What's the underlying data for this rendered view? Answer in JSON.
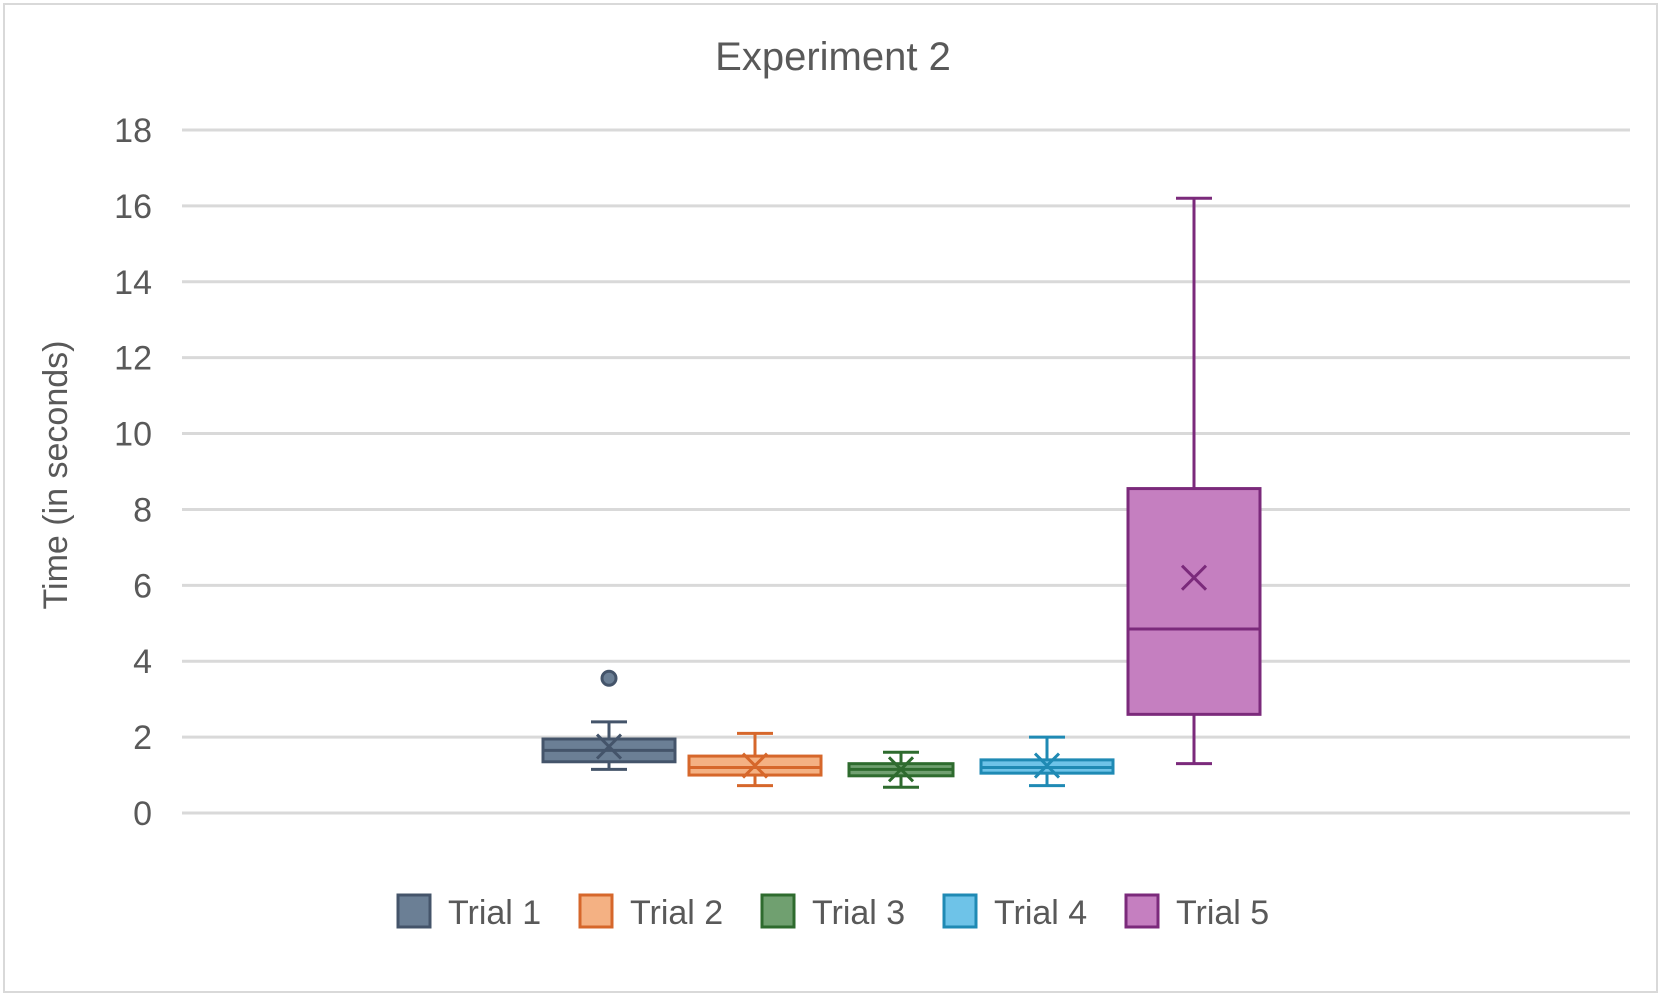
{
  "chart_data": {
    "type": "box",
    "title": "Experiment 2",
    "ylabel": "Time (in seconds)",
    "xlabel": "",
    "ylim": [
      0,
      18
    ],
    "yticks": [
      0,
      2,
      4,
      6,
      8,
      10,
      12,
      14,
      16,
      18
    ],
    "grid": true,
    "legend_position": "bottom",
    "series": [
      {
        "name": "Trial 1",
        "color": "#44546a",
        "fill": "#6b7f95",
        "min": 1.15,
        "q1": 1.35,
        "median": 1.65,
        "q3": 1.95,
        "max": 2.4,
        "mean": 1.75,
        "outliers": [
          3.55
        ]
      },
      {
        "name": "Trial 2",
        "color": "#d6672b",
        "fill": "#f4b183",
        "min": 0.72,
        "q1": 1.0,
        "median": 1.2,
        "q3": 1.5,
        "max": 2.1,
        "mean": 1.25,
        "outliers": []
      },
      {
        "name": "Trial 3",
        "color": "#2e6b2e",
        "fill": "#70a070",
        "min": 0.68,
        "q1": 0.98,
        "median": 1.15,
        "q3": 1.3,
        "max": 1.6,
        "mean": 1.15,
        "outliers": []
      },
      {
        "name": "Trial 4",
        "color": "#1f8ab4",
        "fill": "#6ec3e8",
        "min": 0.72,
        "q1": 1.05,
        "median": 1.2,
        "q3": 1.4,
        "max": 2.0,
        "mean": 1.25,
        "outliers": []
      },
      {
        "name": "Trial 5",
        "color": "#7b2a7b",
        "fill": "#c57fc0",
        "min": 1.3,
        "q1": 2.6,
        "median": 4.85,
        "q3": 8.55,
        "max": 16.2,
        "mean": 6.2,
        "outliers": []
      }
    ]
  }
}
